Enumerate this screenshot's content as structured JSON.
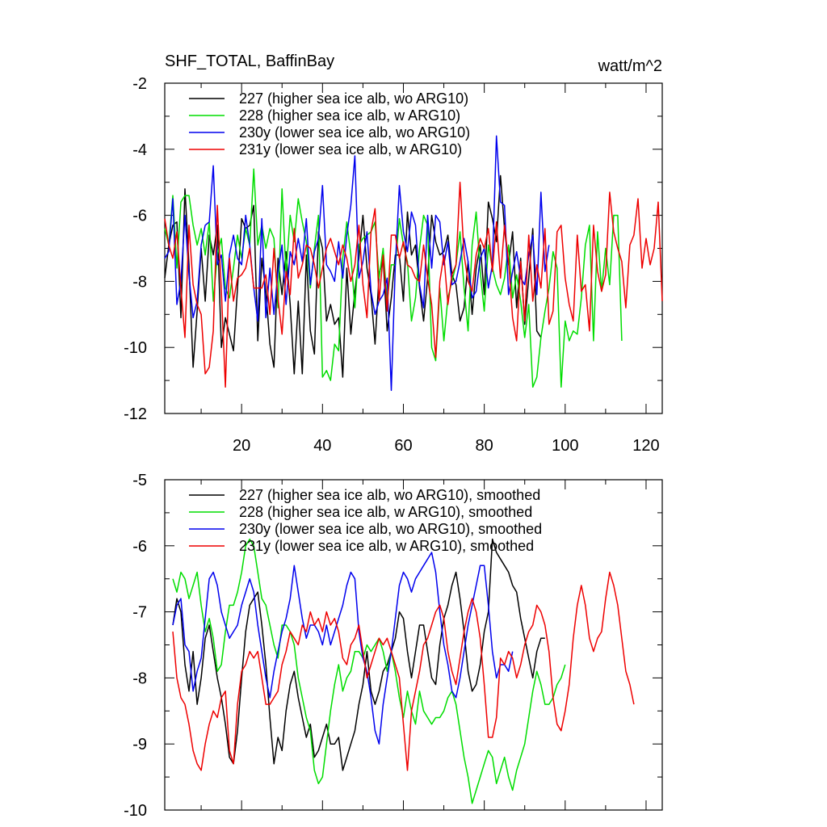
{
  "chart_data": [
    {
      "type": "line",
      "title": "SHF_TOTAL, BaffinBay",
      "units": "watt/m^2",
      "xlabel": "",
      "ylabel": "",
      "xlim": [
        1,
        124
      ],
      "ylim": [
        -12,
        -2
      ],
      "xticks": [
        20,
        40,
        60,
        80,
        100,
        120
      ],
      "yticks": [
        -2,
        -4,
        -6,
        -8,
        -10,
        -12
      ],
      "legend_position": "top-left",
      "series": [
        {
          "name": "227 (higher sea ice alb, wo ARG10)",
          "color": "#000000",
          "x_start": 1,
          "values": [
            -7.9,
            -6.9,
            -6.3,
            -6.2,
            -9.1,
            -5.2,
            -7.5,
            -10.6,
            -8.9,
            -7.0,
            -8.6,
            -6.6,
            -7.2,
            -6.3,
            -10.0,
            -9.1,
            -9.6,
            -10.1,
            -8.2,
            -6.1,
            -6.4,
            -6.3,
            -5.7,
            -9.8,
            -7.3,
            -8.3,
            -9.9,
            -10.6,
            -7.3,
            -8.4,
            -7.1,
            -8.7,
            -10.8,
            -8.6,
            -10.8,
            -7.2,
            -9.5,
            -10.2,
            -6.5,
            -7.0,
            -9.2,
            -8.7,
            -9.3,
            -9.1,
            -10.9,
            -7.6,
            -9.6,
            -8.3,
            -7.3,
            -6.0,
            -7.6,
            -8.4,
            -9.9,
            -7.8,
            -7.3,
            -9.5,
            -8.5,
            -7.2,
            -7.2,
            -8.6,
            -5.9,
            -7.2,
            -6.9,
            -8.2,
            -9.2,
            -7.9,
            -6.0,
            -6.8,
            -7.2,
            -7.1,
            -6.6,
            -7.8,
            -8.1,
            -9.2,
            -8.8,
            -7.4,
            -9.0,
            -7.6,
            -6.9,
            -8.4,
            -5.6,
            -6.1,
            -6.8,
            -4.8,
            -6.4,
            -7.5,
            -6.5,
            -8.8,
            -7.3,
            -9.3,
            -7.9,
            -6.4,
            -9.5,
            -9.7
          ]
        },
        {
          "name": "228 (higher sea ice alb, w ARG10)",
          "color": "#00dd00",
          "x_start": 1,
          "values": [
            -6.4,
            -6.9,
            -5.4,
            -7.6,
            -5.6,
            -5.4,
            -5.4,
            -6.3,
            -6.9,
            -6.4,
            -7.2,
            -6.2,
            -8.6,
            -7.2,
            -6.7,
            -8.2,
            -8.5,
            -7.6,
            -6.6,
            -7.3,
            -6.4,
            -6.9,
            -4.6,
            -6.9,
            -6.3,
            -7.0,
            -6.4,
            -6.7,
            -8.8,
            -5.2,
            -7.8,
            -6.0,
            -6.8,
            -5.5,
            -6.2,
            -6.8,
            -8.2,
            -7.0,
            -6.0,
            -10.9,
            -10.7,
            -11.0,
            -9.9,
            -10.1,
            -7.3,
            -6.2,
            -7.2,
            -8.8,
            -6.9,
            -6.7,
            -6.6,
            -6.5,
            -6.2,
            -7.9,
            -7.0,
            -8.6,
            -7.5,
            -7.5,
            -6.1,
            -6.9,
            -7.4,
            -9.2,
            -8.5,
            -7.0,
            -6.0,
            -6.3,
            -10.0,
            -10.4,
            -8.2,
            -9.8,
            -8.5,
            -8.0,
            -7.5,
            -6.5,
            -8.2,
            -9.5,
            -6.9,
            -5.9,
            -7.7,
            -8.9,
            -6.9,
            -7.6,
            -8.1,
            -8.4,
            -7.9,
            -6.9,
            -8.5,
            -7.8,
            -8.6,
            -9.7,
            -8.7,
            -11.2,
            -10.9,
            -9.7,
            -8.9,
            -8.2,
            -7.1,
            -7.6,
            -11.2,
            -9.2,
            -9.8,
            -9.5,
            -9.6,
            -8.5,
            -6.9,
            -6.3,
            -9.8,
            -6.5,
            -8.3,
            -7.0,
            -8.1,
            -6.0,
            -6.0,
            -9.8
          ]
        },
        {
          "name": "230y (lower sea ice alb, wo ARG10)",
          "color": "#0000ee",
          "x_start": 1,
          "values": [
            -7.3,
            -7.1,
            -5.5,
            -8.7,
            -8.0,
            -6.0,
            -7.8,
            -9.1,
            -8.6,
            -6.9,
            -6.3,
            -6.2,
            -4.5,
            -7.5,
            -7.2,
            -8.6,
            -7.2,
            -6.6,
            -7.3,
            -7.5,
            -6.0,
            -6.9,
            -8.2,
            -9.2,
            -6.1,
            -9.1,
            -7.6,
            -9.0,
            -7.7,
            -6.9,
            -8.7,
            -7.1,
            -7.5,
            -6.7,
            -7.4,
            -6.1,
            -8.1,
            -7.1,
            -6.7,
            -5.1,
            -7.5,
            -7.7,
            -8.0,
            -6.8,
            -7.9,
            -6.6,
            -5.7,
            -4.2,
            -7.9,
            -7.4,
            -6.5,
            -8.3,
            -9.0,
            -8.6,
            -8.4,
            -7.9,
            -11.3,
            -7.5,
            -5.1,
            -6.5,
            -7.1,
            -5.9,
            -6.3,
            -8.1,
            -8.8,
            -6.0,
            -7.6,
            -6.0,
            -6.2,
            -7.5,
            -6.8,
            -8.1,
            -8.0,
            -7.4,
            -6.7,
            -7.4,
            -8.5,
            -8.3,
            -7.3,
            -7.0,
            -8.2,
            -7.5,
            -3.6,
            -5.6,
            -5.7,
            -8.4,
            -7.7,
            -7.1,
            -7.9,
            -8.1,
            -7.2,
            -6.6,
            -8.4,
            -5.3,
            -7.7,
            -6.9
          ]
        },
        {
          "name": "231y (lower sea ice alb, w ARG10)",
          "color": "#ee0000",
          "x_start": 1,
          "values": [
            -6.1,
            -6.9,
            -7.3,
            -6.5,
            -8.2,
            -9.7,
            -6.3,
            -8.1,
            -8.7,
            -9.0,
            -10.8,
            -10.6,
            -9.5,
            -5.7,
            -8.3,
            -11.2,
            -7.3,
            -8.6,
            -7.9,
            -7.8,
            -7.6,
            -7.0,
            -8.2,
            -8.2,
            -8.2,
            -7.8,
            -9.0,
            -7.0,
            -8.5,
            -9.6,
            -7.7,
            -8.4,
            -6.4,
            -7.9,
            -7.5,
            -6.9,
            -7.0,
            -7.5,
            -8.2,
            -7.6,
            -7.0,
            -6.7,
            -7.1,
            -7.5,
            -6.9,
            -7.3,
            -8.0,
            -7.5,
            -6.3,
            -8.1,
            -9.1,
            -6.5,
            -5.8,
            -8.6,
            -7.2,
            -8.9,
            -6.6,
            -6.6,
            -7.3,
            -6.8,
            -7.5,
            -7.6,
            -7.9,
            -8.0,
            -6.9,
            -7.9,
            -8.7,
            -10.3,
            -8.0,
            -7.2,
            -8.7,
            -7.8,
            -7.5,
            -5.0,
            -7.2,
            -8.0,
            -8.3,
            -7.2,
            -6.7,
            -7.0,
            -6.4,
            -7.7,
            -6.2,
            -7.9,
            -6.3,
            -7.4,
            -9.1,
            -9.8,
            -7.4,
            -9.2,
            -6.6,
            -8.6,
            -7.5,
            -8.2,
            -6.4,
            -9.3,
            -8.9,
            -6.5,
            -6.3,
            -7.9,
            -8.7,
            -9.2,
            -6.6,
            -8.3,
            -8.1,
            -9.5,
            -6.3,
            -7.7,
            -8.3,
            -7.8,
            -5.3,
            -6.5,
            -7.0,
            -7.4,
            -8.8,
            -6.9,
            -6.6,
            -5.5,
            -7.6,
            -6.7,
            -7.5,
            -7.0,
            -5.6,
            -8.6
          ]
        }
      ]
    },
    {
      "type": "line",
      "title": "",
      "xlabel": "",
      "ylabel": "",
      "xlim": [
        1,
        124
      ],
      "ylim": [
        -10,
        -5
      ],
      "xticks": [
        20,
        40,
        60,
        80,
        100,
        120
      ],
      "yticks": [
        -5,
        -6,
        -7,
        -8,
        -9,
        -10
      ],
      "legend_position": "top-left",
      "series": [
        {
          "name": "227 (higher sea ice alb, wo ARG10), smoothed",
          "color": "#000000",
          "x_start": 3,
          "values": [
            -7.2,
            -6.8,
            -7.0,
            -7.8,
            -8.2,
            -7.6,
            -8.4,
            -8.0,
            -7.4,
            -7.2,
            -7.6,
            -8.0,
            -8.3,
            -8.7,
            -9.2,
            -9.3,
            -8.8,
            -8.0,
            -7.3,
            -6.9,
            -6.8,
            -6.7,
            -7.2,
            -7.8,
            -8.6,
            -9.3,
            -8.9,
            -9.1,
            -8.5,
            -8.1,
            -7.9,
            -8.3,
            -8.6,
            -8.9,
            -8.7,
            -9.2,
            -9.1,
            -8.9,
            -8.7,
            -9.0,
            -9.0,
            -8.9,
            -9.4,
            -9.2,
            -9.0,
            -8.8,
            -8.4,
            -8.1,
            -7.6,
            -8.2,
            -8.4,
            -8.2,
            -7.9,
            -7.8,
            -7.6,
            -7.4,
            -7.0,
            -7.1,
            -7.6,
            -8.0,
            -7.6,
            -7.2,
            -7.2,
            -7.6,
            -8.0,
            -8.1,
            -7.5,
            -7.1,
            -6.9,
            -6.6,
            -6.4,
            -6.8,
            -7.3,
            -7.9,
            -8.2,
            -8.1,
            -7.8,
            -7.3,
            -7.0,
            -5.9,
            -6.1,
            -6.2,
            -6.3,
            -6.4,
            -6.6,
            -6.7,
            -7.1,
            -7.4,
            -7.7,
            -8.0,
            -7.6,
            -7.4,
            -7.4
          ]
        },
        {
          "name": "228 (higher sea ice alb, w ARG10), smoothed",
          "color": "#00dd00",
          "x_start": 3,
          "values": [
            -6.5,
            -6.7,
            -6.4,
            -6.5,
            -6.8,
            -6.6,
            -6.4,
            -6.9,
            -7.3,
            -7.1,
            -7.4,
            -7.9,
            -7.8,
            -7.3,
            -6.9,
            -6.9,
            -6.7,
            -6.4,
            -6.0,
            -5.9,
            -6.0,
            -6.4,
            -6.8,
            -6.9,
            -7.2,
            -7.5,
            -7.7,
            -7.2,
            -7.2,
            -7.3,
            -7.5,
            -8.0,
            -8.3,
            -8.6,
            -8.8,
            -9.4,
            -9.6,
            -9.5,
            -9.0,
            -8.5,
            -8.1,
            -7.8,
            -8.2,
            -8.0,
            -7.9,
            -7.6,
            -7.6,
            -7.7,
            -7.5,
            -7.6,
            -7.5,
            -7.4,
            -7.6,
            -7.9,
            -7.6,
            -7.9,
            -8.3,
            -8.6,
            -8.2,
            -8.5,
            -8.7,
            -8.2,
            -8.5,
            -8.6,
            -8.7,
            -8.6,
            -8.6,
            -8.5,
            -8.3,
            -8.2,
            -8.4,
            -8.8,
            -9.2,
            -9.5,
            -9.9,
            -9.7,
            -9.5,
            -9.3,
            -9.1,
            -9.2,
            -9.6,
            -9.4,
            -9.2,
            -9.5,
            -9.7,
            -9.4,
            -9.2,
            -9.0,
            -8.6,
            -8.2,
            -7.9,
            -8.1,
            -8.4,
            -8.4,
            -8.3,
            -8.1,
            -8.0,
            -7.8
          ]
        },
        {
          "name": "230y (lower sea ice alb, wo ARG10), smoothed",
          "color": "#0000ee",
          "x_start": 3,
          "values": [
            -7.2,
            -6.9,
            -6.8,
            -7.5,
            -7.6,
            -8.2,
            -7.9,
            -7.7,
            -7.1,
            -6.5,
            -6.4,
            -6.6,
            -7.0,
            -7.2,
            -7.4,
            -7.3,
            -7.2,
            -6.9,
            -6.7,
            -6.5,
            -6.7,
            -7.2,
            -7.6,
            -8.0,
            -8.3,
            -7.9,
            -7.6,
            -7.3,
            -7.1,
            -6.8,
            -6.3,
            -6.7,
            -7.1,
            -7.4,
            -7.2,
            -7.2,
            -7.3,
            -7.5,
            -7.2,
            -7.5,
            -7.3,
            -7.1,
            -6.9,
            -6.6,
            -6.4,
            -6.5,
            -7.3,
            -7.7,
            -7.9,
            -8.3,
            -8.8,
            -9.0,
            -8.4,
            -8.0,
            -7.6,
            -7.1,
            -6.6,
            -6.4,
            -6.5,
            -6.7,
            -6.5,
            -6.4,
            -6.3,
            -6.2,
            -6.1,
            -6.4,
            -7.0,
            -7.5,
            -7.8,
            -8.2,
            -8.3,
            -8.0,
            -7.6,
            -7.2,
            -6.9,
            -6.6,
            -6.3,
            -6.3,
            -6.9,
            -7.6,
            -8.0,
            -7.8,
            -7.8,
            -7.9,
            -7.6
          ]
        },
        {
          "name": "231y (lower sea ice alb, w ARG10), smoothed",
          "color": "#ee0000",
          "x_start": 3,
          "values": [
            -7.3,
            -8.0,
            -8.3,
            -8.4,
            -8.7,
            -9.1,
            -9.3,
            -9.4,
            -9.0,
            -8.7,
            -8.5,
            -8.6,
            -8.3,
            -8.2,
            -9.1,
            -9.3,
            -8.4,
            -7.9,
            -7.8,
            -7.6,
            -7.7,
            -7.6,
            -8.0,
            -8.4,
            -8.4,
            -8.3,
            -8.2,
            -7.8,
            -7.6,
            -7.3,
            -7.4,
            -7.5,
            -7.2,
            -7.3,
            -7.0,
            -7.2,
            -7.1,
            -7.3,
            -7.0,
            -7.2,
            -7.1,
            -7.3,
            -7.7,
            -7.8,
            -7.5,
            -7.4,
            -7.2,
            -7.6,
            -8.0,
            -7.8,
            -7.6,
            -7.4,
            -7.5,
            -7.4,
            -7.6,
            -7.8,
            -8.0,
            -8.7,
            -9.4,
            -8.5,
            -8.2,
            -7.9,
            -7.5,
            -7.4,
            -7.2,
            -7.0,
            -6.9,
            -7.1,
            -7.6,
            -7.9,
            -8.1,
            -7.7,
            -7.3,
            -7.0,
            -6.8,
            -7.0,
            -7.4,
            -8.1,
            -8.9,
            -8.9,
            -8.6,
            -7.7,
            -7.8,
            -7.6,
            -7.7,
            -8.0,
            -7.8,
            -7.5,
            -7.3,
            -7.2,
            -6.9,
            -7.0,
            -7.2,
            -7.6,
            -8.3,
            -8.7,
            -8.8,
            -8.5,
            -8.1,
            -7.4,
            -6.9,
            -6.6,
            -6.9,
            -7.4,
            -7.6,
            -7.4,
            -7.3,
            -6.8,
            -6.4,
            -6.6,
            -6.9,
            -7.4,
            -7.9,
            -8.1,
            -8.4
          ]
        }
      ]
    }
  ]
}
